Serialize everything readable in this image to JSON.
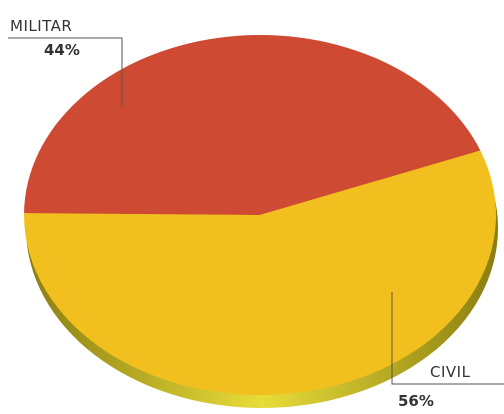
{
  "chart_data": {
    "type": "pie",
    "categories": [
      "MILITAR",
      "CIVIL"
    ],
    "values": [
      44,
      56
    ],
    "value_labels": [
      "44%",
      "56%"
    ],
    "colors": [
      "#cf4a32",
      "#f2c01e"
    ]
  }
}
